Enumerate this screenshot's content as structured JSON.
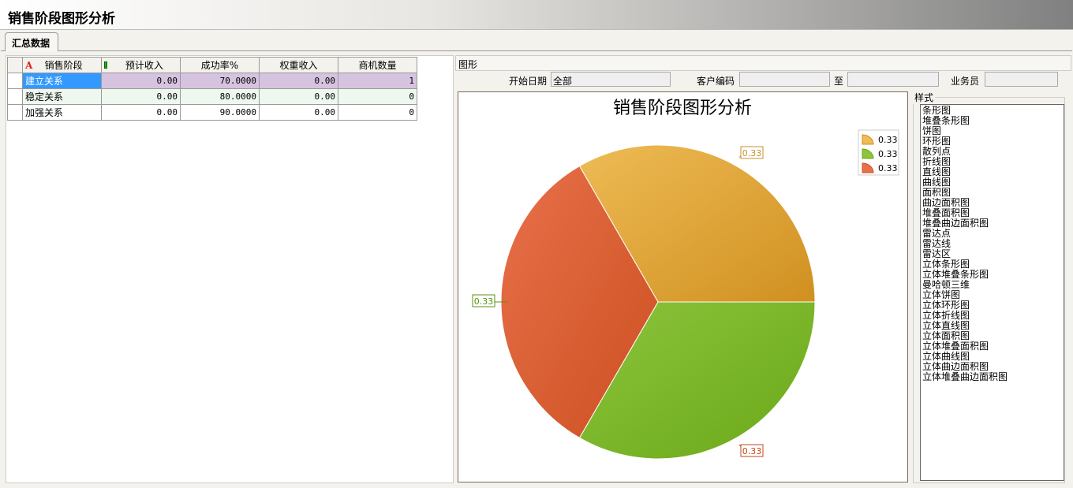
{
  "window": {
    "title": "销售阶段图形分析"
  },
  "tabs": [
    {
      "label": "汇总数据"
    }
  ],
  "table": {
    "headers": [
      "销售阶段",
      "预计收入",
      "成功率%",
      "权重收入",
      "商机数量"
    ],
    "rows": [
      [
        "建立关系",
        "0.00",
        "70.0000",
        "0.00",
        "1"
      ],
      [
        "稳定关系",
        "0.00",
        "80.0000",
        "0.00",
        "0"
      ],
      [
        "加强关系",
        "0.00",
        "90.0000",
        "0.00",
        "0"
      ]
    ]
  },
  "panel": {
    "title": "图形"
  },
  "filters": {
    "start_date_label": "开始日期",
    "start_date_value": "全部",
    "customer_label": "客户编码",
    "customer_value": "",
    "to_label": "至",
    "to_value": "",
    "salesman_label": "业务员",
    "salesman_value": ""
  },
  "styles": {
    "label": "样式",
    "items": [
      "条形图",
      "堆叠条形图",
      "饼图",
      "环形图",
      "散列点",
      "折线图",
      "直线图",
      "曲线图",
      "面积图",
      "曲边面积图",
      "堆叠面积图",
      "堆叠曲边面积图",
      "雷达点",
      "雷达线",
      "雷达区",
      "立体条形图",
      "立体堆叠条形图",
      "曼哈顿三维",
      "立体饼图",
      "立体环形图",
      "立体折线图",
      "立体直线图",
      "立体面积图",
      "立体堆叠面积图",
      "立体曲线图",
      "立体曲边面积图",
      "立体堆叠曲边面积图"
    ]
  },
  "chart_data": {
    "type": "pie",
    "title": "销售阶段图形分析",
    "values": [
      0.33,
      0.33,
      0.33
    ],
    "labels": [
      "0.33",
      "0.33",
      "0.33"
    ],
    "legend": [
      "0.33",
      "0.33",
      "0.33"
    ],
    "legend_position": "top-right",
    "colors": [
      [
        "#eebb55",
        "#d09020"
      ],
      [
        "#8cc43c",
        "#6aa818"
      ],
      [
        "#e8704a",
        "#cc5020"
      ]
    ],
    "label_colors": [
      "#c89030",
      "#5a9010",
      "#c04818"
    ]
  }
}
